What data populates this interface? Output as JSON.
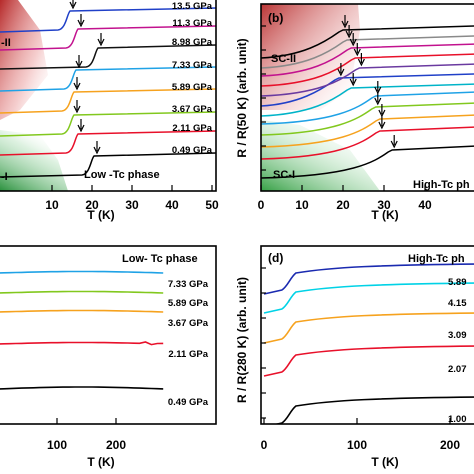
{
  "chart_data": [
    {
      "panel": "a",
      "type": "line",
      "xlabel": "T (K)",
      "xlim": [
        0,
        50
      ],
      "x_ticks": [
        "10",
        "20",
        "30",
        "40",
        "50"
      ],
      "title": "Low -Tc phase",
      "region_labels": [
        "SC-II",
        "SC-I"
      ],
      "series": [
        {
          "name": "0.49 GPa",
          "color": "#000000",
          "tc": 20.5
        },
        {
          "name": "2.11 GPa",
          "color": "#e8102a",
          "tc": 16.5
        },
        {
          "name": "3.67 GPa",
          "color": "#82c81e",
          "tc": 15.5
        },
        {
          "name": "5.89 GPa",
          "color": "#f6a21e",
          "tc": 15.5
        },
        {
          "name": "7.33 GPa",
          "color": "#1fa2e6",
          "tc": 16.0
        },
        {
          "name": "8.98 GPa",
          "color": "#111111",
          "tc": 21.5
        },
        {
          "name": "11.3 GPa",
          "color": "#c2128e",
          "tc": 16.5
        },
        {
          "name": "13.5 GPa",
          "color": "#2040c8",
          "tc": 14.5
        }
      ]
    },
    {
      "panel": "b",
      "type": "line",
      "xlabel": "T (K)",
      "ylabel": "R / R(50 K) (arb. unit)",
      "xlim": [
        0,
        45
      ],
      "x_ticks": [
        "0",
        "10",
        "20",
        "30",
        "40"
      ],
      "title": "High-Tc ph",
      "region_labels": [
        "SC-II",
        "SC-I"
      ],
      "series": [
        {
          "color": "#000000",
          "tc": 32
        },
        {
          "color": "#e8102a",
          "tc": 29
        },
        {
          "color": "#f6a21e",
          "tc": 29
        },
        {
          "color": "#82c81e",
          "tc": 28
        },
        {
          "color": "#1fa2e6",
          "tc": 28
        },
        {
          "color": "#00b4c8",
          "tc": 22
        },
        {
          "color": "#2040c8",
          "tc": 19
        },
        {
          "color": "#6a3aa0",
          "tc": 24
        },
        {
          "color": "#e8102a",
          "tc": 23
        },
        {
          "color": "#c2128e",
          "tc": 22
        },
        {
          "color": "#8a8a8a",
          "tc": 21
        },
        {
          "color": "#000000",
          "tc": 20
        }
      ]
    },
    {
      "panel": "c",
      "type": "line",
      "xlabel": "T (K)",
      "xlim": [
        0,
        280
      ],
      "x_ticks": [
        "100",
        "200"
      ],
      "title": "Low- Tc phase",
      "series": [
        {
          "name": "0.49 GPa",
          "color": "#000000"
        },
        {
          "name": "2.11 GPa",
          "color": "#e8102a"
        },
        {
          "name": "3.67 GPa",
          "color": "#f6a21e"
        },
        {
          "name": "5.89 GPa",
          "color": "#82c81e"
        },
        {
          "name": "7.33 GPa",
          "color": "#1fa2e6"
        }
      ]
    },
    {
      "panel": "d",
      "type": "line",
      "xlabel": "T (K)",
      "ylabel": "R / R(280 K) (arb. unit)",
      "xlim": [
        0,
        250
      ],
      "x_ticks": [
        "0",
        "100",
        "200"
      ],
      "title": "High-Tc ph",
      "series": [
        {
          "name": "1.00",
          "color": "#000000"
        },
        {
          "name": "2.07",
          "color": "#e8102a"
        },
        {
          "name": "3.09",
          "color": "#f6a21e"
        },
        {
          "name": "4.15",
          "color": "#00d2e6"
        },
        {
          "name": "5.89",
          "color": "#1a2ab0"
        }
      ]
    }
  ],
  "labels": {
    "panel_b": "(b)",
    "panel_d": "(d)",
    "a_title": "Low -Tc phase",
    "b_title": "High-Tc ph",
    "c_title": "Low- Tc phase",
    "d_title": "High-Tc ph",
    "sc2": "SC-II",
    "sc1": "SC-I",
    "a_sc2": "-II",
    "a_sc1": "-I"
  }
}
